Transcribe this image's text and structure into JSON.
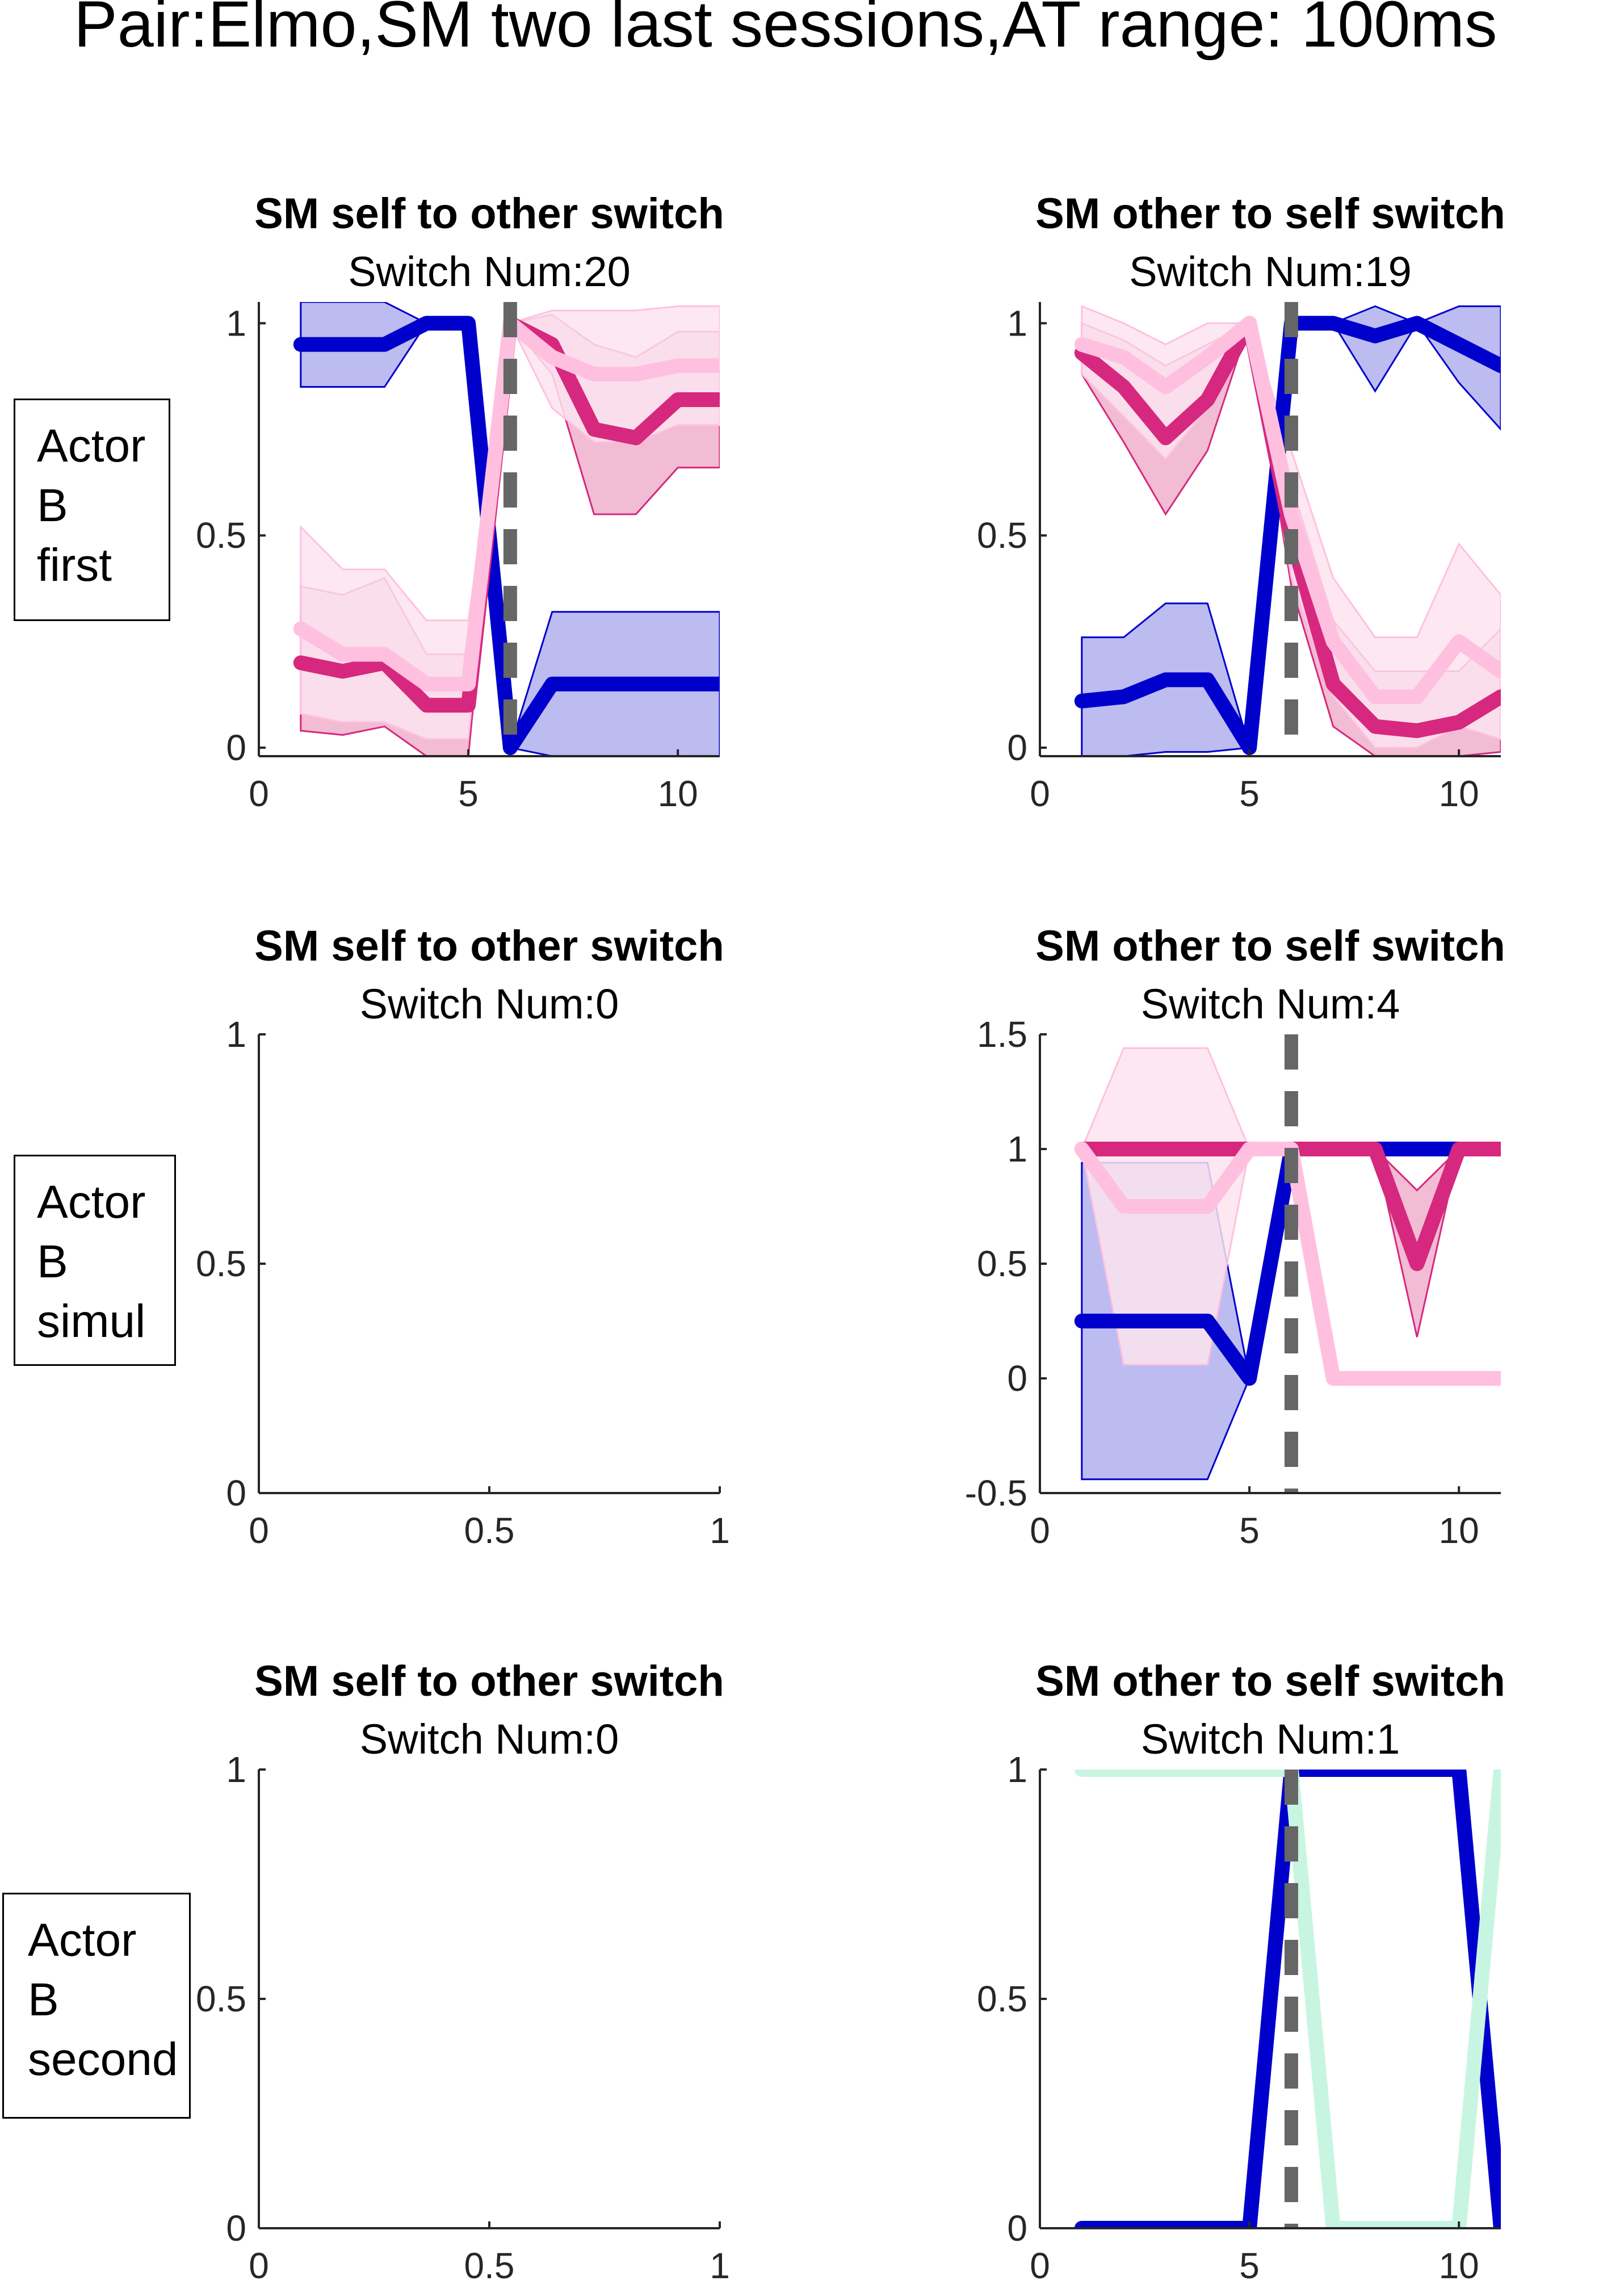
{
  "title": "Pair:Elmo,SM two last sessions,AT range: 100ms",
  "row_labels": [
    {
      "line1": "Actor",
      "line2": "B",
      "line3": "first"
    },
    {
      "line1": "Actor",
      "line2": "B",
      "line3": "simul"
    },
    {
      "line1": "Actor",
      "line2": "B",
      "line3": "second"
    }
  ],
  "colors": {
    "blue": "#0000cc",
    "blue_fill": "#b0b0ee",
    "magenta": "#d6287e",
    "magenta_fill": "#eeb0cc",
    "pink": "#ffc0e0",
    "pink_fill": "#fde4ef",
    "mint": "#c8f5e1",
    "switch_line": "#666666"
  },
  "chart_data": [
    {
      "type": "line",
      "title": "SM self to other switch",
      "subtitle": "Switch Num:20",
      "xlim": [
        0,
        11
      ],
      "ylim": [
        -0.02,
        1.05
      ],
      "xticks": [
        "0",
        "5",
        "10"
      ],
      "xtick_values": [
        0,
        5,
        10
      ],
      "yticks": [
        "0",
        "0.5",
        "1"
      ],
      "ytick_values": [
        0,
        0.5,
        1
      ],
      "switch_x": 6,
      "series": [
        {
          "color": "blue",
          "fill": "blue_fill",
          "x": [
            1,
            2,
            3,
            4,
            5,
            6,
            7,
            8,
            9,
            10,
            11
          ],
          "values": [
            0.95,
            0.95,
            0.95,
            1.0,
            1.0,
            0.0,
            0.15,
            0.15,
            0.15,
            0.15,
            0.15
          ],
          "lower": [
            0.85,
            0.85,
            0.85,
            1.0,
            1.0,
            0.0,
            -0.02,
            -0.02,
            -0.02,
            -0.02,
            -0.02
          ],
          "upper": [
            1.05,
            1.05,
            1.05,
            1.0,
            1.0,
            0.0,
            0.32,
            0.32,
            0.32,
            0.32,
            0.32
          ]
        },
        {
          "color": "magenta",
          "fill": "magenta_fill",
          "x": [
            1,
            2,
            3,
            4,
            5,
            6,
            7,
            8,
            9,
            10,
            11
          ],
          "values": [
            0.2,
            0.18,
            0.2,
            0.1,
            0.1,
            1.0,
            0.95,
            0.75,
            0.73,
            0.82,
            0.82
          ],
          "lower": [
            0.04,
            0.03,
            0.05,
            -0.02,
            -0.02,
            1.0,
            0.88,
            0.55,
            0.55,
            0.66,
            0.66
          ],
          "upper": [
            0.38,
            0.36,
            0.4,
            0.22,
            0.22,
            1.0,
            1.02,
            0.95,
            0.92,
            0.98,
            0.98
          ]
        },
        {
          "color": "pink",
          "fill": "pink_fill",
          "x": [
            1,
            2,
            3,
            4,
            5,
            6,
            7,
            8,
            9,
            10,
            11
          ],
          "values": [
            0.28,
            0.22,
            0.22,
            0.15,
            0.15,
            1.0,
            0.92,
            0.88,
            0.88,
            0.9,
            0.9
          ],
          "lower": [
            0.08,
            0.06,
            0.06,
            0.02,
            0.02,
            1.0,
            0.8,
            0.72,
            0.72,
            0.76,
            0.76
          ],
          "upper": [
            0.52,
            0.42,
            0.42,
            0.3,
            0.3,
            1.0,
            1.03,
            1.03,
            1.03,
            1.04,
            1.04
          ]
        }
      ]
    },
    {
      "type": "line",
      "title": "SM other to self switch",
      "subtitle": "Switch Num:19",
      "xlim": [
        0,
        11
      ],
      "ylim": [
        -0.02,
        1.05
      ],
      "xticks": [
        "0",
        "5",
        "10"
      ],
      "xtick_values": [
        0,
        5,
        10
      ],
      "yticks": [
        "0",
        "0.5",
        "1"
      ],
      "ytick_values": [
        0,
        0.5,
        1
      ],
      "switch_x": 6,
      "series": [
        {
          "color": "blue",
          "fill": "blue_fill",
          "x": [
            1,
            2,
            3,
            4,
            5,
            6,
            7,
            8,
            9,
            10,
            11
          ],
          "values": [
            0.11,
            0.12,
            0.16,
            0.16,
            0.0,
            1.0,
            1.0,
            0.97,
            1.0,
            0.95,
            0.9
          ],
          "lower": [
            -0.02,
            -0.02,
            -0.01,
            -0.01,
            0.0,
            1.0,
            1.0,
            0.84,
            1.0,
            0.86,
            0.75
          ],
          "upper": [
            0.26,
            0.26,
            0.34,
            0.34,
            0.0,
            1.0,
            1.0,
            1.04,
            1.0,
            1.04,
            1.04
          ]
        },
        {
          "color": "magenta",
          "fill": "magenta_fill",
          "x": [
            1,
            2,
            3,
            4,
            5,
            6,
            7,
            8,
            9,
            10,
            11
          ],
          "values": [
            0.93,
            0.85,
            0.73,
            0.82,
            1.0,
            0.5,
            0.15,
            0.05,
            0.04,
            0.06,
            0.12
          ],
          "lower": [
            0.88,
            0.72,
            0.55,
            0.7,
            1.0,
            0.38,
            0.05,
            -0.02,
            -0.02,
            -0.02,
            -0.01
          ],
          "upper": [
            1.0,
            0.96,
            0.9,
            0.95,
            1.0,
            0.62,
            0.3,
            0.18,
            0.18,
            0.18,
            0.28
          ]
        },
        {
          "color": "pink",
          "fill": "pink_fill",
          "x": [
            1,
            2,
            3,
            4,
            5,
            6,
            7,
            8,
            9,
            10,
            11
          ],
          "values": [
            0.95,
            0.92,
            0.85,
            0.92,
            1.0,
            0.55,
            0.25,
            0.12,
            0.12,
            0.25,
            0.18
          ],
          "lower": [
            0.88,
            0.78,
            0.68,
            0.8,
            1.0,
            0.4,
            0.12,
            0.0,
            0.0,
            0.05,
            0.02
          ],
          "upper": [
            1.04,
            1.0,
            0.95,
            1.0,
            1.0,
            0.7,
            0.4,
            0.26,
            0.26,
            0.48,
            0.36
          ]
        }
      ]
    },
    {
      "type": "line",
      "title": "SM self to other switch",
      "subtitle": "Switch Num:0",
      "xlim": [
        0,
        1
      ],
      "ylim": [
        0,
        1
      ],
      "xticks": [
        "0",
        "0.5",
        "1"
      ],
      "xtick_values": [
        0,
        0.5,
        1
      ],
      "yticks": [
        "0",
        "0.5",
        "1"
      ],
      "ytick_values": [
        0,
        0.5,
        1
      ],
      "series": []
    },
    {
      "type": "line",
      "title": "SM other to self switch",
      "subtitle": "Switch Num:4",
      "xlim": [
        0,
        11
      ],
      "ylim": [
        -0.5,
        1.5
      ],
      "xticks": [
        "0",
        "5",
        "10"
      ],
      "xtick_values": [
        0,
        5,
        10
      ],
      "yticks": [
        "-0.5",
        "0",
        "0.5",
        "1",
        "1.5"
      ],
      "ytick_values": [
        -0.5,
        0,
        0.5,
        1,
        1.5
      ],
      "switch_x": 6,
      "series": [
        {
          "color": "blue",
          "fill": "blue_fill",
          "x": [
            1,
            2,
            3,
            4,
            5,
            6,
            7,
            8,
            9,
            10,
            11
          ],
          "values": [
            0.25,
            0.25,
            0.25,
            0.25,
            0.0,
            1.0,
            1.0,
            1.0,
            1.0,
            1.0,
            1.0
          ],
          "lower": [
            -0.44,
            -0.44,
            -0.44,
            -0.44,
            0.0,
            1.0,
            1.0,
            1.0,
            1.0,
            1.0,
            1.0
          ],
          "upper": [
            0.94,
            0.94,
            0.94,
            0.94,
            0.0,
            1.0,
            1.0,
            1.0,
            1.0,
            1.0,
            1.0
          ]
        },
        {
          "color": "magenta",
          "fill": "magenta_fill",
          "x": [
            1,
            2,
            3,
            4,
            5,
            6,
            7,
            8,
            9,
            10,
            11
          ],
          "values": [
            1.0,
            1.0,
            1.0,
            1.0,
            1.0,
            1.0,
            1.0,
            1.0,
            0.5,
            1.0,
            1.0
          ],
          "lower": [
            1.0,
            1.0,
            1.0,
            1.0,
            1.0,
            1.0,
            1.0,
            1.0,
            0.18,
            1.0,
            1.0
          ],
          "upper": [
            1.0,
            1.0,
            1.0,
            1.0,
            1.0,
            1.0,
            1.0,
            1.0,
            0.82,
            1.0,
            1.0
          ]
        },
        {
          "color": "pink",
          "fill": "pink_fill",
          "x": [
            1,
            2,
            3,
            4,
            5,
            6,
            7,
            8,
            9,
            10,
            11
          ],
          "values": [
            1.0,
            0.75,
            0.75,
            0.75,
            1.0,
            1.0,
            0.0,
            0.0,
            0.0,
            0.0,
            0.0
          ],
          "lower": [
            1.0,
            0.06,
            0.06,
            0.06,
            1.0,
            1.0,
            0.0,
            0.0,
            0.0,
            0.0,
            0.0
          ],
          "upper": [
            1.0,
            1.44,
            1.44,
            1.44,
            1.0,
            1.0,
            0.0,
            0.0,
            0.0,
            0.0,
            0.0
          ]
        }
      ]
    },
    {
      "type": "line",
      "title": "SM self to other switch",
      "subtitle": "Switch Num:0",
      "xlim": [
        0,
        1
      ],
      "ylim": [
        0,
        1
      ],
      "xticks": [
        "0",
        "0.5",
        "1"
      ],
      "xtick_values": [
        0,
        0.5,
        1
      ],
      "yticks": [
        "0",
        "0.5",
        "1"
      ],
      "ytick_values": [
        0,
        0.5,
        1
      ],
      "series": []
    },
    {
      "type": "line",
      "title": "SM other to self switch",
      "subtitle": "Switch Num:1",
      "xlim": [
        0,
        11
      ],
      "ylim": [
        0,
        1
      ],
      "xticks": [
        "0",
        "5",
        "10"
      ],
      "xtick_values": [
        0,
        5,
        10
      ],
      "yticks": [
        "0",
        "0.5",
        "1"
      ],
      "ytick_values": [
        0,
        0.5,
        1
      ],
      "switch_x": 6,
      "series": [
        {
          "color": "blue",
          "x": [
            1,
            2,
            3,
            4,
            5,
            6,
            7,
            8,
            9,
            10,
            11
          ],
          "values": [
            0,
            0,
            0,
            0,
            0,
            1,
            1,
            1,
            1,
            1,
            0
          ]
        },
        {
          "color": "mint",
          "x": [
            1,
            2,
            3,
            4,
            5,
            6,
            7,
            8,
            9,
            10,
            11
          ],
          "values": [
            1,
            1,
            1,
            1,
            1,
            1,
            0,
            0,
            0,
            0,
            1
          ]
        }
      ]
    }
  ]
}
